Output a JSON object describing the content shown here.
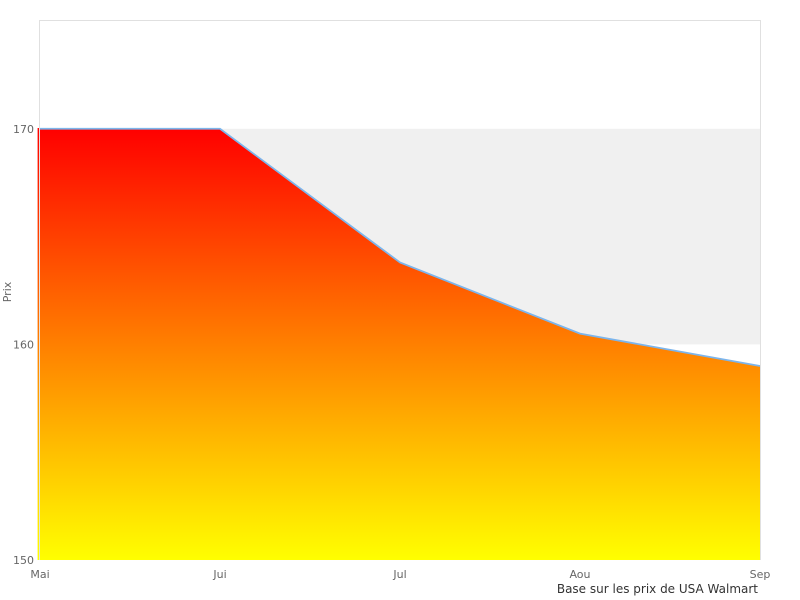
{
  "chart_data": {
    "type": "area",
    "title": "",
    "xlabel": "",
    "ylabel": "Prix",
    "categories": [
      "Mai",
      "Jui",
      "Jul",
      "Aou",
      "Sep"
    ],
    "series": [
      {
        "name": "Prix",
        "values": [
          170,
          170,
          163.8,
          160.5,
          159
        ]
      }
    ],
    "yticks": [
      150,
      160,
      170
    ],
    "ytick_labels": [
      "150",
      "160",
      "170"
    ],
    "ylim": [
      150,
      175
    ],
    "grid": "none",
    "legend": "none",
    "plot_band": {
      "from": 160,
      "to": 170,
      "color": "#f0f0f0"
    },
    "caption": "Base sur les prix de USA Walmart",
    "colors": {
      "line": "#7cb5ec",
      "gradient_top": "#ff0000",
      "gradient_bottom": "#ffff00",
      "band": "#f0f0f0",
      "plot_border": "#e0e0e0",
      "tick_text": "#666666",
      "axis_title_text": "#666666",
      "caption_text": "#333333",
      "background": "#ffffff"
    }
  }
}
